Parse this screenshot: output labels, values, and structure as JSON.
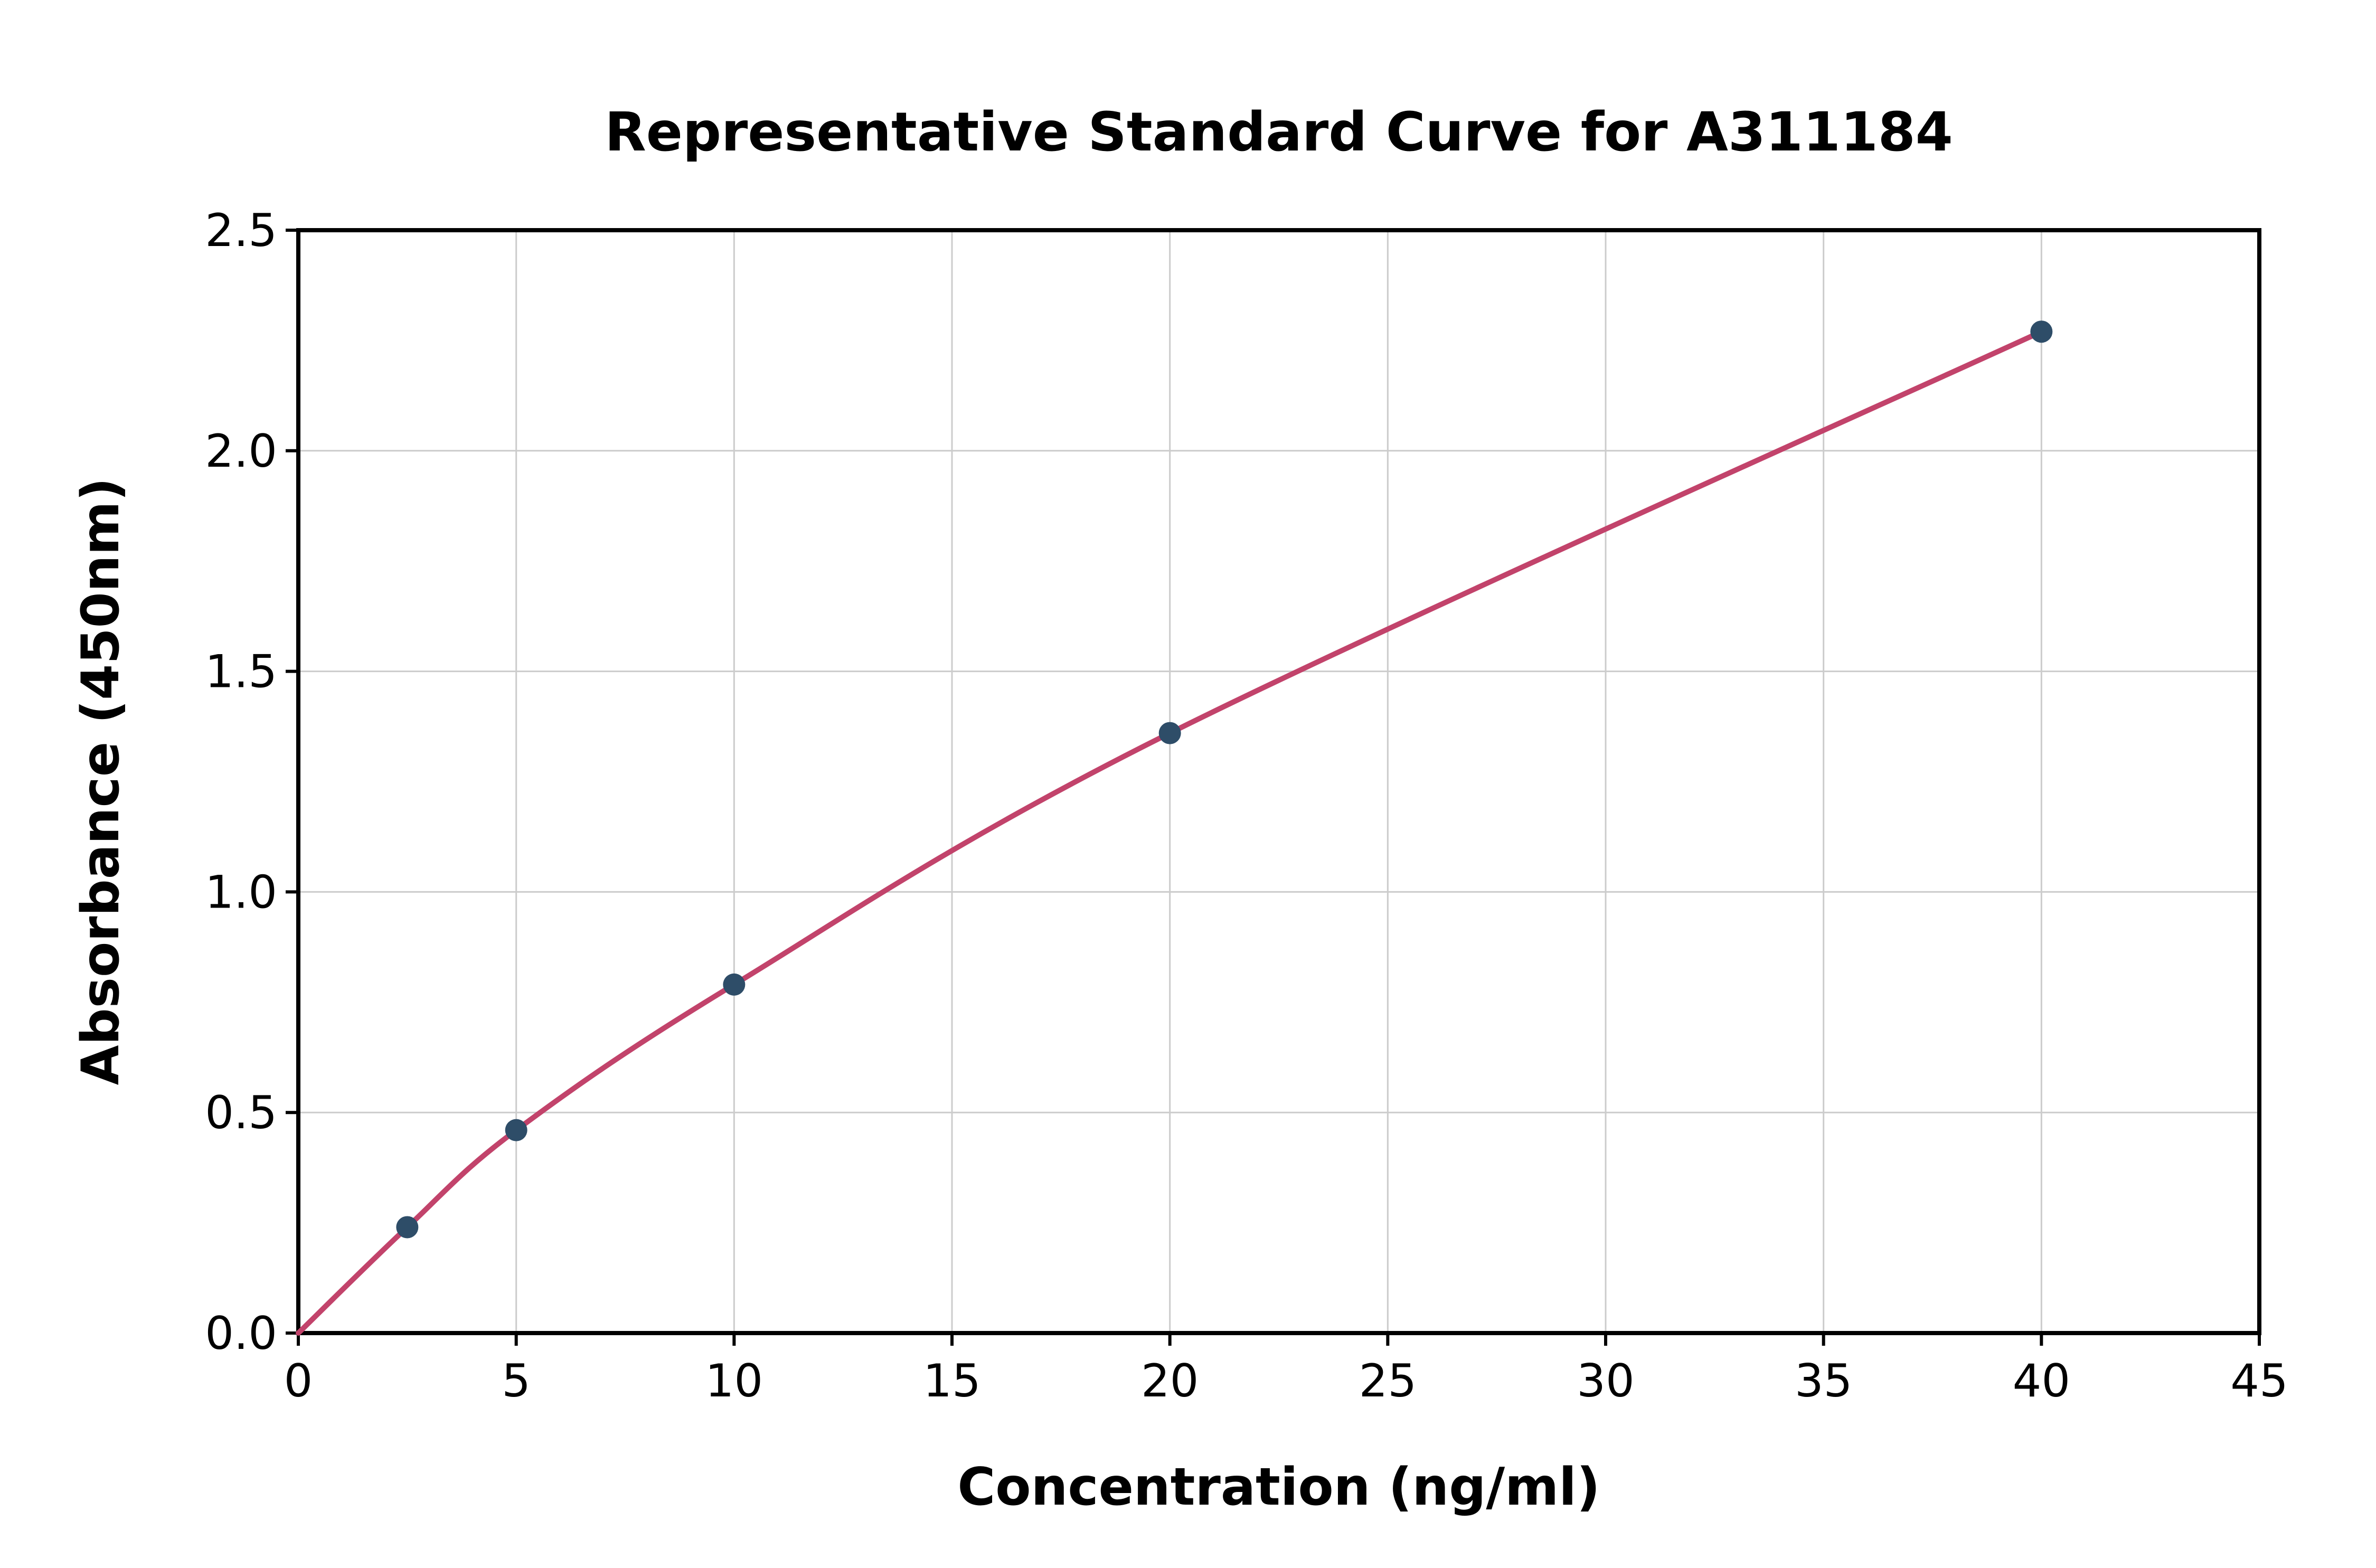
{
  "title": "Representative Standard Curve for A311184",
  "chart_data": {
    "type": "scatter",
    "title": "Representative Standard Curve for A311184",
    "xlabel": "Concentration (ng/ml)",
    "ylabel": "Absorbance (450nm)",
    "xlim": [
      0,
      45
    ],
    "ylim": [
      0,
      2.5
    ],
    "x_ticks": [
      0,
      5,
      10,
      15,
      20,
      25,
      30,
      35,
      40,
      45
    ],
    "x_tick_labels": [
      "0",
      "5",
      "10",
      "15",
      "20",
      "25",
      "30",
      "35",
      "40",
      "45"
    ],
    "y_ticks": [
      0.0,
      0.5,
      1.0,
      1.5,
      2.0,
      2.5
    ],
    "y_tick_labels": [
      "0.0",
      "0.5",
      "1.0",
      "1.5",
      "2.0",
      "2.5"
    ],
    "grid": true,
    "legend": "none",
    "curve_start": {
      "x": 0,
      "y": 0
    },
    "points": [
      {
        "x": 2.5,
        "y": 0.24
      },
      {
        "x": 5,
        "y": 0.46
      },
      {
        "x": 10,
        "y": 0.79
      },
      {
        "x": 20,
        "y": 1.36
      },
      {
        "x": 40,
        "y": 2.27
      }
    ],
    "colors": {
      "curve": "#c2436b",
      "marker": "#2e4d68",
      "grid": "#cccccc",
      "axis": "#000000",
      "background": "#ffffff"
    }
  }
}
